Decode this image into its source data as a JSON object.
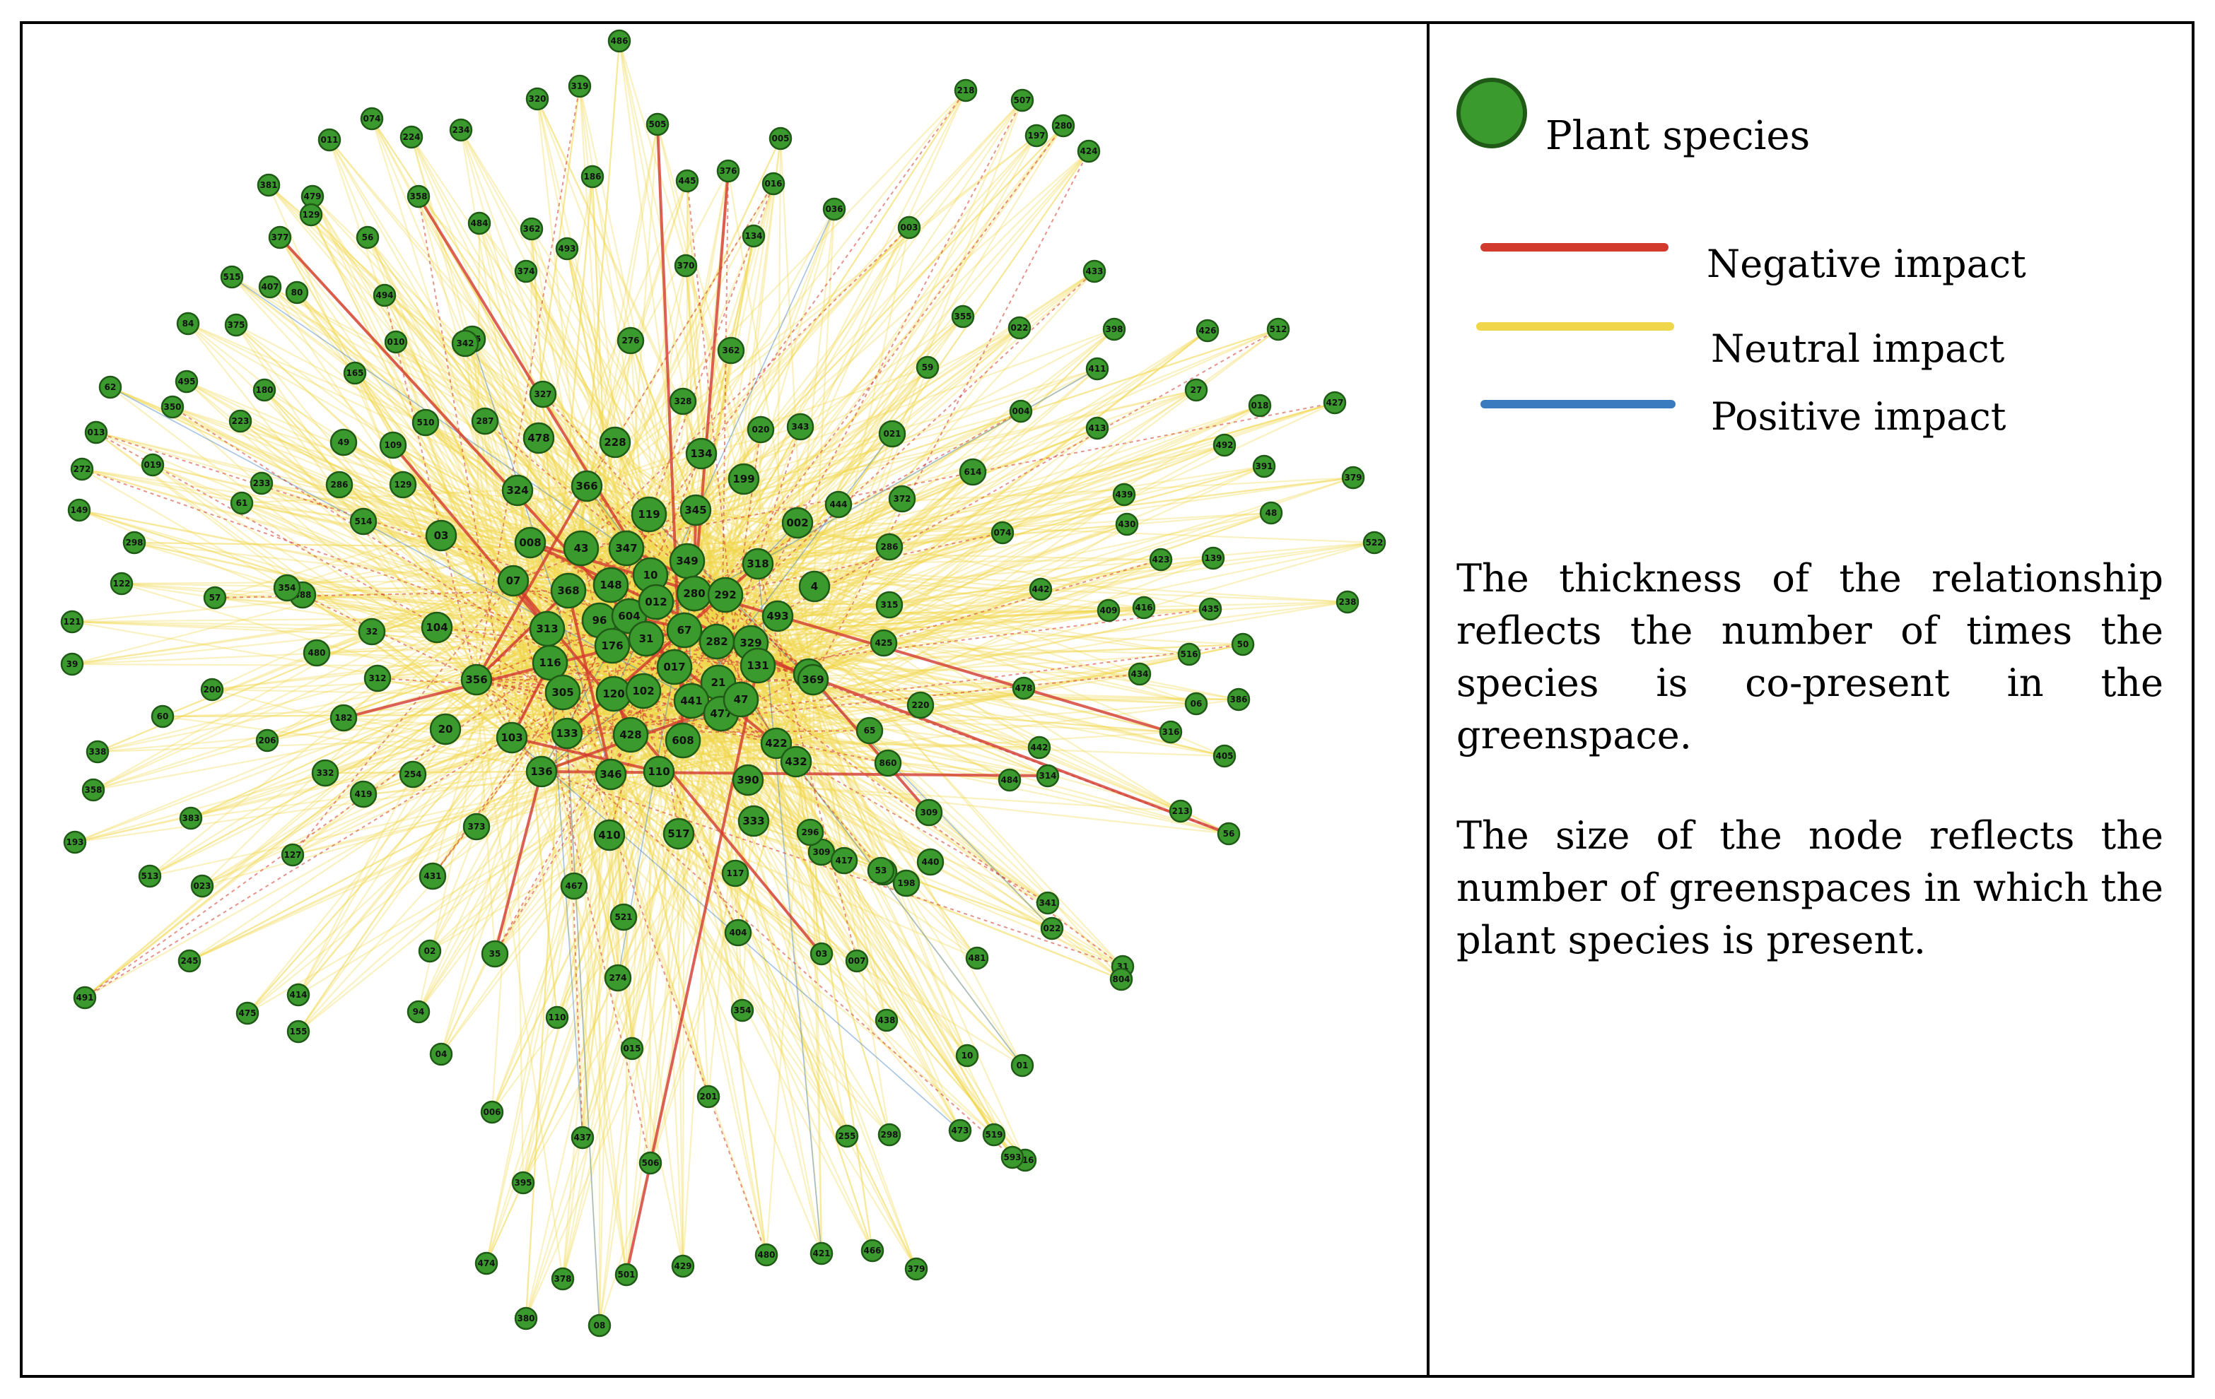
{
  "legend": {
    "node_label": "Plant species",
    "negative_label": "Negative impact",
    "neutral_label": "Neutral impact",
    "positive_label": "Positive impact",
    "colors": {
      "node": "#3b9a2e",
      "node_border": "#1f5a17",
      "negative": "#d23a2e",
      "neutral": "#f0d64a",
      "positive": "#3a7bc0"
    }
  },
  "description": {
    "paragraph1": "The thickness of the relationship reflects the number of times the species is co-present in the greenspace.",
    "paragraph2": "The size of the node reflects the number of greenspaces in which the plant species is present."
  },
  "network": {
    "node_ids": [
      "486",
      "320",
      "319",
      "505",
      "005",
      "218",
      "507",
      "197",
      "280",
      "424",
      "074",
      "224",
      "234",
      "011",
      "381",
      "479",
      "358",
      "186",
      "445",
      "376",
      "016",
      "129",
      "377",
      "56",
      "484",
      "362",
      "493",
      "134",
      "036",
      "003",
      "515",
      "407",
      "80",
      "494",
      "374",
      "370",
      "433",
      "84",
      "375",
      "525",
      "010",
      "342",
      "276",
      "362",
      "355",
      "022",
      "398",
      "426",
      "512",
      "495",
      "165",
      "327",
      "59",
      "411",
      "62",
      "180",
      "510",
      "287",
      "478",
      "328",
      "020",
      "343",
      "021",
      "27",
      "018",
      "427",
      "013",
      "350",
      "223",
      "49",
      "109",
      "228",
      "004",
      "413",
      "492",
      "272",
      "019",
      "233",
      "286",
      "129",
      "324",
      "366",
      "134",
      "199",
      "614",
      "391",
      "379",
      "149",
      "61",
      "514",
      "03",
      "008",
      "43",
      "347",
      "119",
      "345",
      "002",
      "444",
      "372",
      "439",
      "48",
      "286",
      "488",
      "074",
      "430",
      "522",
      "298",
      "354",
      "07",
      "368",
      "148",
      "10",
      "349",
      "318",
      "4",
      "423",
      "139",
      "122",
      "57",
      "309",
      "313",
      "96",
      "604",
      "012",
      "280",
      "292",
      "493",
      "315",
      "442",
      "409",
      "416",
      "435",
      "238",
      "121",
      "32",
      "104",
      "116",
      "176",
      "31",
      "67",
      "282",
      "329",
      "425",
      "516",
      "50",
      "39",
      "480",
      "312",
      "356",
      "017",
      "21",
      "131",
      "420",
      "434",
      "06",
      "386",
      "200",
      "305",
      "120",
      "102",
      "441",
      "477",
      "47",
      "369",
      "220",
      "478",
      "316",
      "60",
      "182",
      "20",
      "103",
      "133",
      "428",
      "608",
      "422",
      "65",
      "442",
      "405",
      "206",
      "332",
      "254",
      "136",
      "346",
      "110",
      "390",
      "432",
      "860",
      "484",
      "314",
      "338",
      "358",
      "383",
      "419",
      "373",
      "410",
      "517",
      "333",
      "296",
      "309",
      "417",
      "34",
      "213",
      "56",
      "193",
      "127",
      "513",
      "431",
      "023",
      "467",
      "117",
      "53",
      "440",
      "198",
      "341",
      "022",
      "02",
      "521",
      "404",
      "03",
      "481",
      "31",
      "245",
      "35",
      "274",
      "007",
      "804",
      "491",
      "414",
      "94",
      "354",
      "438",
      "475",
      "155",
      "110",
      "015",
      "10",
      "01",
      "04",
      "201",
      "006",
      "255",
      "298",
      "473",
      "519",
      "416",
      "593",
      "437",
      "506",
      "395",
      "474",
      "378",
      "501",
      "429",
      "480",
      "421",
      "466",
      "379",
      "380",
      "08"
    ]
  }
}
